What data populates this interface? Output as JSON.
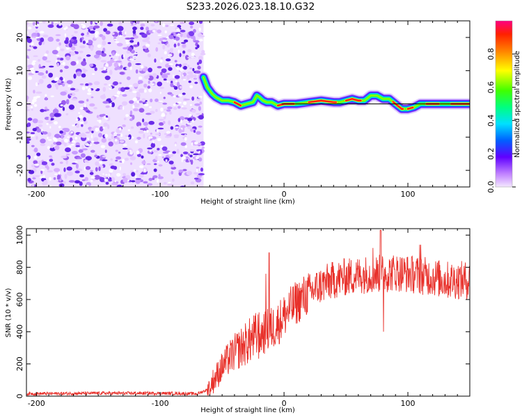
{
  "title": "S233.2026.023.18.10.G32",
  "chart_data": [
    {
      "type": "heatmap",
      "name": "spectrogram",
      "xlabel": "Height of straight line (km)",
      "ylabel": "Frequency (Hz)",
      "xlim": [
        -208,
        150
      ],
      "ylim": [
        -25,
        25
      ],
      "xticks": [
        -200,
        -100,
        0,
        100
      ],
      "yticks": [
        -20,
        -10,
        0,
        10,
        20
      ],
      "noise_region_x": [
        -208,
        -65
      ],
      "track": {
        "x": [
          -65,
          -62,
          -58,
          -55,
          -50,
          -45,
          -40,
          -35,
          -30,
          -25,
          -22,
          -20,
          -17,
          -14,
          -10,
          -5,
          0,
          10,
          20,
          30,
          40,
          45,
          50,
          55,
          60,
          65,
          70,
          75,
          80,
          85,
          90,
          95,
          100,
          105,
          110,
          115,
          120,
          130,
          140,
          150
        ],
        "y": [
          8,
          5,
          3,
          2,
          1,
          1,
          0.5,
          -0.5,
          0,
          0.5,
          2.5,
          2,
          1,
          0.5,
          0.5,
          -0.5,
          0,
          0,
          0.5,
          1,
          0.5,
          0.5,
          1,
          1.5,
          1,
          1,
          2.5,
          2.5,
          1.5,
          1.5,
          0,
          -1.5,
          -1.5,
          -1,
          0,
          0,
          0,
          0,
          0,
          0
        ]
      },
      "colorbar": {
        "label": "Normalized spectral amplitude",
        "ticks": [
          0.0,
          0.2,
          0.4,
          0.6,
          0.8
        ],
        "tick_labels": [
          "0.0",
          "0.2",
          "0.4",
          "0.6",
          "0.8"
        ]
      }
    },
    {
      "type": "line",
      "name": "snr",
      "xlabel": "Height of straight line (km)",
      "ylabel": "SNR (10 * v/v)",
      "xlim": [
        -208,
        150
      ],
      "ylim": [
        0,
        1040
      ],
      "xticks": [
        -200,
        -100,
        0,
        100
      ],
      "yticks": [
        0,
        200,
        400,
        600,
        800,
        1000
      ],
      "series": [
        {
          "name": "SNR",
          "color": "#e8302a",
          "x": [
            -208,
            -150,
            -100,
            -70,
            -62,
            -55,
            -50,
            -45,
            -40,
            -35,
            -30,
            -25,
            -20,
            -15,
            -10,
            -5,
            0,
            10,
            20,
            30,
            40,
            50,
            60,
            70,
            80,
            90,
            100,
            110,
            120,
            130,
            140,
            150
          ],
          "values": [
            15,
            18,
            18,
            15,
            40,
            120,
            180,
            230,
            270,
            300,
            330,
            360,
            380,
            400,
            420,
            450,
            500,
            580,
            640,
            690,
            720,
            740,
            750,
            760,
            760,
            770,
            760,
            750,
            740,
            720,
            720,
            720
          ]
        }
      ]
    }
  ]
}
